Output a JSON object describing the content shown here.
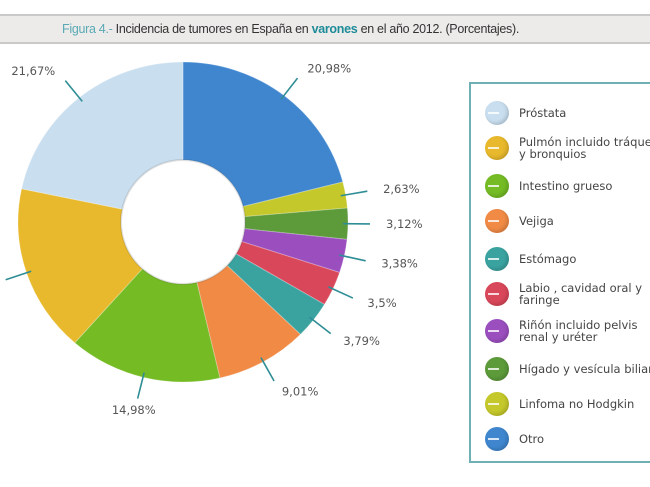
{
  "title": {
    "prefix": "Figura 4.-",
    "before": " Incidencia de tumores en España en ",
    "highlight": "varones",
    "after": " en el año 2012. (Porcentajes)."
  },
  "chart_data": {
    "type": "pie",
    "variant": "donut",
    "start": "top, clockwise",
    "legend_position": "right",
    "series": [
      {
        "name": "Otro",
        "value": 20.98,
        "label": "20,98%",
        "color": "#3f86cf"
      },
      {
        "name": "Linfoma no Hodgkin",
        "value": 2.63,
        "label": "2,63%",
        "color": "#c5c82a"
      },
      {
        "name": "Hígado y vesícula biliar",
        "value": 3.12,
        "label": "3,12%",
        "color": "#5c9a3a"
      },
      {
        "name": "Riñón incluido pelvis renal y uréter",
        "value": 3.38,
        "label": "3,38%",
        "color": "#9b4fbf"
      },
      {
        "name": "Labio, cavidad oral y faringe",
        "value": 3.5,
        "label": "3,5%",
        "color": "#d9475a"
      },
      {
        "name": "Estómago",
        "value": 3.79,
        "label": "3,79%",
        "color": "#3aa3a0"
      },
      {
        "name": "Vejiga",
        "value": 9.01,
        "label": "9,01%",
        "color": "#f08a45"
      },
      {
        "name": "Intestino grueso",
        "value": 14.98,
        "label": "14,98%",
        "color": "#74bb24"
      },
      {
        "name": "Pulmón incluido tráquea y bronquios",
        "value": 16.94,
        "label": "",
        "color": "#e8b92c"
      },
      {
        "name": "Próstata",
        "value": 21.67,
        "label": "21,67%",
        "color": "#c9dff0"
      }
    ]
  },
  "legend": [
    {
      "label": "Próstata",
      "color": "#c9dff0"
    },
    {
      "label": "Pulmón incluido tráquea\ny bronquios",
      "color": "#e8b92c"
    },
    {
      "label": "Intestino grueso",
      "color": "#74bb24"
    },
    {
      "label": "Vejiga",
      "color": "#f08a45"
    },
    {
      "label": "Estómago",
      "color": "#3aa3a0"
    },
    {
      "label": "Labio , cavidad oral y\nfaringe",
      "color": "#d9475a"
    },
    {
      "label": "Riñón incluido pelvis\nrenal y uréter",
      "color": "#9b4fbf"
    },
    {
      "label": "Hígado y vesícula biliar",
      "color": "#5c9a3a"
    },
    {
      "label": "Linfoma no Hodgkin",
      "color": "#c5c82a"
    },
    {
      "label": "Otro",
      "color": "#3f86cf"
    }
  ]
}
